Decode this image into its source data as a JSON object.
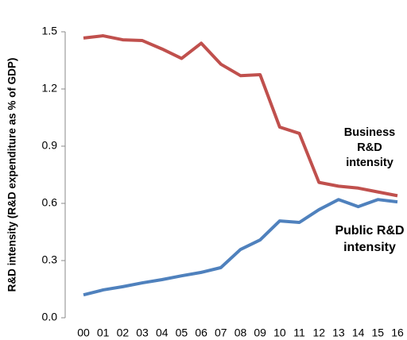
{
  "chart_data": {
    "type": "line",
    "y_label": "R&D intensity (R&D expenditure as % of GDP)",
    "categories": [
      "00",
      "01",
      "02",
      "03",
      "04",
      "05",
      "06",
      "07",
      "08",
      "09",
      "10",
      "11",
      "12",
      "13",
      "14",
      "15",
      "16"
    ],
    "series": [
      {
        "name": "Business R&D intensity",
        "color": "#c0504d",
        "values": [
          1.467,
          1.479,
          1.458,
          1.454,
          1.41,
          1.36,
          1.44,
          1.33,
          1.27,
          1.275,
          1.0,
          0.967,
          0.71,
          0.69,
          0.68,
          0.66,
          0.64
        ]
      },
      {
        "name": "Public R&D intensity",
        "color": "#4f81bd",
        "values": [
          0.12,
          0.146,
          0.163,
          0.183,
          0.2,
          0.22,
          0.238,
          0.263,
          0.358,
          0.408,
          0.508,
          0.5,
          0.567,
          0.62,
          0.583,
          0.62,
          0.608
        ]
      }
    ],
    "ylim": [
      0,
      1.5
    ],
    "yticks": [
      {
        "value": 0,
        "label": "0.0"
      },
      0.3,
      0.6,
      0.9,
      1.2,
      1.5
    ]
  }
}
